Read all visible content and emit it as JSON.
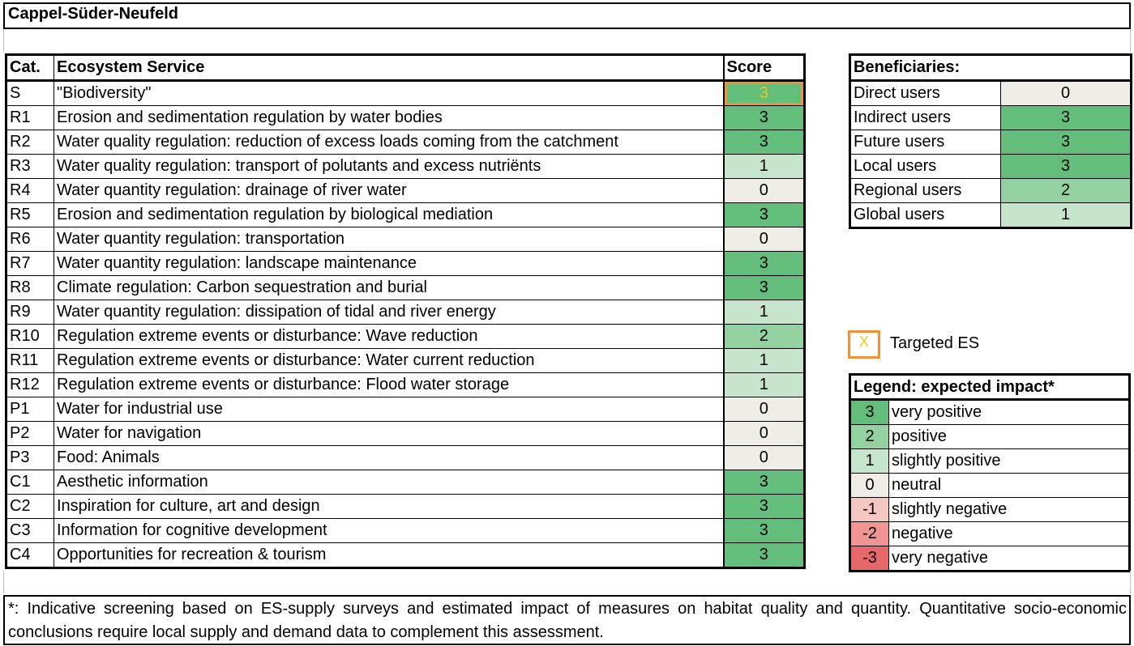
{
  "title": "Cappel-Süder-Neufeld",
  "colors": {
    "score_3": "#63be7b",
    "score_2": "#93d1a1",
    "score_1": "#c6e5cc",
    "score_0": "#efede5",
    "score_-1": "#f4c7c3",
    "score_-2": "#f29592",
    "score_-3": "#e8686a",
    "targeted_border": "#f0923a",
    "targeted_text": "#f5c518"
  },
  "es_table": {
    "headers": {
      "cat": "Cat.",
      "service": "Ecosystem Service",
      "score": "Score"
    },
    "rows": [
      {
        "cat": "S",
        "service": "\"Biodiversity\"",
        "score": "3",
        "targeted": true
      },
      {
        "cat": "R1",
        "service": "Erosion and sedimentation regulation by water bodies",
        "score": "3"
      },
      {
        "cat": "R2",
        "service": "Water quality regulation: reduction of excess loads coming from the catchment",
        "score": "3"
      },
      {
        "cat": "R3",
        "service": "Water quality regulation: transport of polutants and excess nutriënts",
        "score": "1"
      },
      {
        "cat": "R4",
        "service": "Water quantity regulation: drainage of river water",
        "score": "0"
      },
      {
        "cat": "R5",
        "service": "Erosion and sedimentation regulation by biological mediation",
        "score": "3"
      },
      {
        "cat": "R6",
        "service": "Water quantity regulation: transportation",
        "score": "0"
      },
      {
        "cat": "R7",
        "service": "Water quantity regulation: landscape maintenance",
        "score": "3"
      },
      {
        "cat": "R8",
        "service": "Climate regulation: Carbon sequestration and burial",
        "score": "3"
      },
      {
        "cat": "R9",
        "service": "Water quantity regulation: dissipation of tidal and river energy",
        "score": "1"
      },
      {
        "cat": "R10",
        "service": "Regulation extreme events or disturbance: Wave reduction",
        "score": "2"
      },
      {
        "cat": "R11",
        "service": "Regulation extreme events or disturbance: Water current reduction",
        "score": "1"
      },
      {
        "cat": "R12",
        "service": "Regulation extreme events or disturbance: Flood water storage",
        "score": "1"
      },
      {
        "cat": "P1",
        "service": "Water for industrial use",
        "score": "0"
      },
      {
        "cat": "P2",
        "service": "Water for navigation",
        "score": "0"
      },
      {
        "cat": "P3",
        "service": "Food: Animals",
        "score": "0"
      },
      {
        "cat": "C1",
        "service": "Aesthetic information",
        "score": "3"
      },
      {
        "cat": "C2",
        "service": "Inspiration for culture, art and design",
        "score": "3"
      },
      {
        "cat": "C3",
        "service": "Information for cognitive development",
        "score": "3"
      },
      {
        "cat": "C4",
        "service": "Opportunities for recreation & tourism",
        "score": "3"
      }
    ]
  },
  "beneficiaries": {
    "header": "Beneficiaries:",
    "rows": [
      {
        "name": "Direct users",
        "value": "0"
      },
      {
        "name": "Indirect users",
        "value": "3"
      },
      {
        "name": "Future users",
        "value": "3"
      },
      {
        "name": "Local users",
        "value": "3"
      },
      {
        "name": "Regional users",
        "value": "2"
      },
      {
        "name": "Global users",
        "value": "1"
      }
    ]
  },
  "targeted_key": {
    "mark": "X",
    "label": "Targeted ES"
  },
  "legend": {
    "header": "Legend: expected  impact*",
    "items": [
      {
        "value": "3",
        "label": "very positive"
      },
      {
        "value": "2",
        "label": "positive"
      },
      {
        "value": "1",
        "label": "slightly positive"
      },
      {
        "value": "0",
        "label": "neutral"
      },
      {
        "value": "-1",
        "label": "slightly negative"
      },
      {
        "value": "-2",
        "label": "negative"
      },
      {
        "value": "-3",
        "label": "very negative"
      }
    ]
  },
  "footnote": "*: Indicative screening based on ES-supply surveys and estimated impact of measures on habitat quality and quantity. Quantitative socio-economic conclusions require local supply and demand data to complement this assessment."
}
